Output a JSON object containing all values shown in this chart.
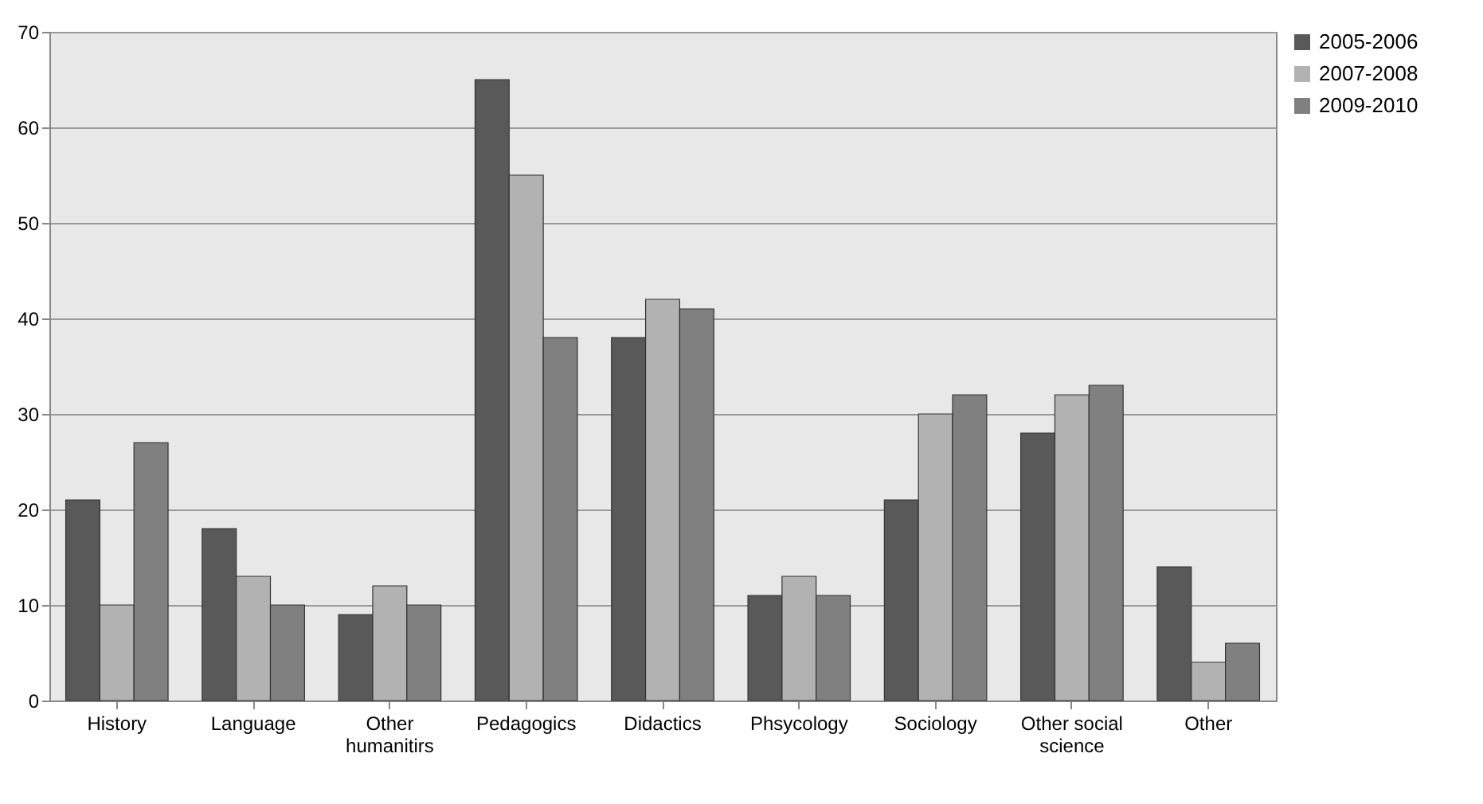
{
  "chart_data": {
    "type": "bar",
    "categories": [
      "History",
      "Language",
      "Other humanitirs",
      "Pedagogics",
      "Didactics",
      "Phsycology",
      "Sociology",
      "Other social science",
      "Other"
    ],
    "series": [
      {
        "name": "2005-2006",
        "color": "#595959",
        "values": [
          21,
          18,
          9,
          65,
          38,
          11,
          21,
          28,
          14
        ]
      },
      {
        "name": "2007-2008",
        "color": "#b2b2b2",
        "values": [
          10,
          13,
          12,
          55,
          42,
          13,
          30,
          32,
          4
        ]
      },
      {
        "name": "2009-2010",
        "color": "#808080",
        "values": [
          27,
          10,
          10,
          38,
          41,
          11,
          32,
          33,
          6
        ]
      }
    ],
    "ylim": [
      0,
      70
    ],
    "yticks": [
      0,
      10,
      20,
      30,
      40,
      50,
      60,
      70
    ],
    "grid": "y",
    "legend": "right"
  }
}
